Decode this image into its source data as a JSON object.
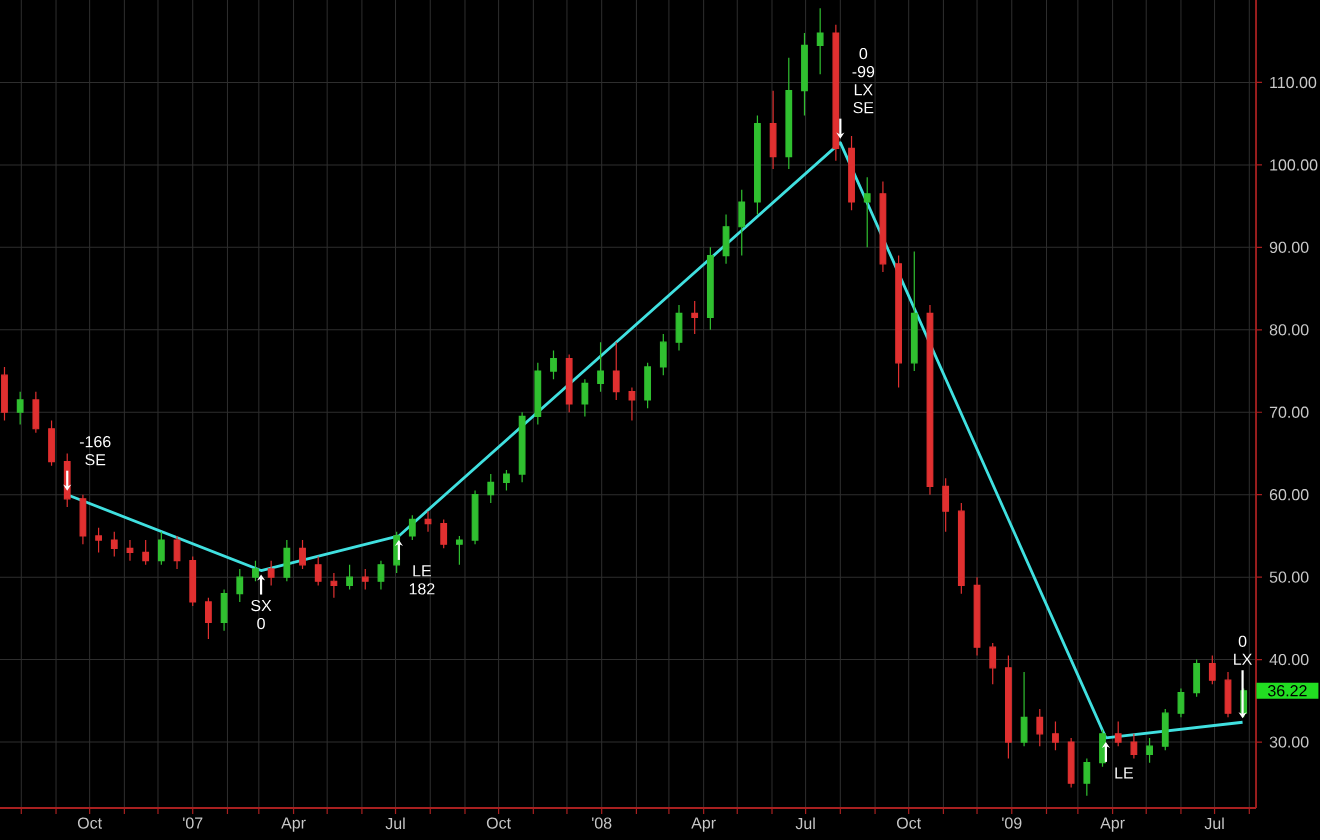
{
  "chart_data": {
    "type": "candlestick",
    "x": [
      "2006-07-17",
      "2006-07-31",
      "2006-08-14",
      "2006-08-28",
      "2006-09-11",
      "2006-09-25",
      "2006-10-09",
      "2006-10-23",
      "2006-11-06",
      "2006-11-20",
      "2006-12-04",
      "2006-12-18",
      "2007-01-01",
      "2007-01-15",
      "2007-01-29",
      "2007-02-12",
      "2007-02-26",
      "2007-03-12",
      "2007-03-26",
      "2007-04-09",
      "2007-04-23",
      "2007-05-07",
      "2007-05-21",
      "2007-06-04",
      "2007-06-18",
      "2007-07-02",
      "2007-07-16",
      "2007-07-30",
      "2007-08-13",
      "2007-08-27",
      "2007-09-10",
      "2007-09-24",
      "2007-10-08",
      "2007-10-22",
      "2007-11-05",
      "2007-11-19",
      "2007-12-03",
      "2007-12-17",
      "2007-12-31",
      "2008-01-14",
      "2008-01-28",
      "2008-02-11",
      "2008-02-25",
      "2008-03-10",
      "2008-03-24",
      "2008-04-07",
      "2008-04-21",
      "2008-05-05",
      "2008-05-19",
      "2008-06-02",
      "2008-06-16",
      "2008-06-30",
      "2008-07-14",
      "2008-07-28",
      "2008-08-11",
      "2008-08-25",
      "2008-09-08",
      "2008-09-22",
      "2008-10-06",
      "2008-10-20",
      "2008-11-03",
      "2008-11-17",
      "2008-12-01",
      "2008-12-15",
      "2008-12-29",
      "2009-01-12",
      "2009-01-26",
      "2009-02-09",
      "2009-02-23",
      "2009-03-09",
      "2009-03-23",
      "2009-04-06",
      "2009-04-20",
      "2009-05-04",
      "2009-05-18",
      "2009-06-01",
      "2009-06-15",
      "2009-06-29",
      "2009-07-13",
      "2009-07-27"
    ],
    "ohlc": [
      [
        74.5,
        75.5,
        69,
        70
      ],
      [
        70,
        72.5,
        68.5,
        71.5
      ],
      [
        71.5,
        72.5,
        67.5,
        68
      ],
      [
        68,
        69,
        63.5,
        64
      ],
      [
        64,
        65,
        58.5,
        59.5
      ],
      [
        59.5,
        60,
        54,
        55
      ],
      [
        55,
        56,
        53,
        54.5
      ],
      [
        54.5,
        55.5,
        52.5,
        53.5
      ],
      [
        53.5,
        54.5,
        52,
        53
      ],
      [
        53,
        54.5,
        51.5,
        52
      ],
      [
        52,
        55.5,
        51.5,
        54.5
      ],
      [
        54.5,
        55,
        51,
        52
      ],
      [
        52,
        52.5,
        46.5,
        47
      ],
      [
        47,
        47.5,
        42.5,
        44.5
      ],
      [
        44.5,
        48.5,
        43.5,
        48
      ],
      [
        48,
        51,
        47,
        50
      ],
      [
        50,
        52,
        49.5,
        51
      ],
      [
        51,
        52,
        49,
        50
      ],
      [
        50,
        54.5,
        49.5,
        53.5
      ],
      [
        53.5,
        54.5,
        51,
        51.5
      ],
      [
        51.5,
        52.5,
        49,
        49.5
      ],
      [
        49.5,
        50.5,
        47.5,
        49
      ],
      [
        49,
        51.5,
        48.5,
        50
      ],
      [
        50,
        51,
        48.5,
        49.5
      ],
      [
        49.5,
        52,
        48.5,
        51.5
      ],
      [
        51.5,
        55.5,
        50.5,
        55
      ],
      [
        55,
        57.5,
        54.5,
        57
      ],
      [
        57,
        58,
        55.5,
        56.5
      ],
      [
        56.5,
        57,
        53.5,
        54
      ],
      [
        54,
        55,
        51.5,
        54.5
      ],
      [
        54.5,
        60.5,
        54,
        60
      ],
      [
        60,
        62.5,
        59,
        61.5
      ],
      [
        61.5,
        63,
        60.5,
        62.5
      ],
      [
        62.5,
        70,
        61.5,
        69.5
      ],
      [
        69.5,
        76,
        68.5,
        75
      ],
      [
        75,
        77.5,
        74,
        76.5
      ],
      [
        76.5,
        77,
        70,
        71
      ],
      [
        71,
        74,
        69.5,
        73.5
      ],
      [
        73.5,
        78.5,
        72.5,
        75
      ],
      [
        75,
        78.5,
        71.5,
        72.5
      ],
      [
        72.5,
        73,
        69,
        71.5
      ],
      [
        71.5,
        76,
        70.5,
        75.5
      ],
      [
        75.5,
        79.5,
        74.5,
        78.5
      ],
      [
        78.5,
        83,
        77.5,
        82
      ],
      [
        82,
        83.5,
        79.5,
        81.5
      ],
      [
        81.5,
        90,
        80,
        89
      ],
      [
        89,
        94,
        88,
        92.5
      ],
      [
        92.5,
        97,
        89,
        95.5
      ],
      [
        95.5,
        106,
        94,
        105
      ],
      [
        105,
        109,
        99.5,
        101
      ],
      [
        101,
        113,
        99.5,
        109
      ],
      [
        109,
        116,
        106,
        114.5
      ],
      [
        114.5,
        119,
        111,
        116
      ],
      [
        116,
        117,
        100.5,
        102
      ],
      [
        102,
        103.5,
        94.5,
        95.5
      ],
      [
        95.5,
        98.5,
        90,
        96.5
      ],
      [
        96.5,
        98,
        87,
        88
      ],
      [
        88,
        89,
        73,
        76
      ],
      [
        76,
        89.5,
        75,
        82
      ],
      [
        82,
        83,
        60,
        61
      ],
      [
        61,
        62,
        55.5,
        58
      ],
      [
        58,
        59,
        48,
        49
      ],
      [
        49,
        50,
        40.5,
        41.5
      ],
      [
        41.5,
        42,
        37,
        39
      ],
      [
        39,
        40.5,
        28,
        30
      ],
      [
        30,
        38.5,
        29.5,
        33
      ],
      [
        33,
        34,
        29.5,
        31
      ],
      [
        31,
        32.5,
        29,
        30
      ],
      [
        30,
        30.5,
        24.5,
        25
      ],
      [
        25,
        28,
        23.5,
        27.5
      ],
      [
        27.5,
        31.5,
        27,
        31
      ],
      [
        31,
        32.5,
        29.5,
        30
      ],
      [
        30,
        31,
        28,
        28.5
      ],
      [
        28.5,
        30.5,
        27.5,
        29.5
      ],
      [
        29.5,
        34,
        29,
        33.5
      ],
      [
        33.5,
        36.5,
        33,
        36
      ],
      [
        36,
        40,
        35.5,
        39.5
      ],
      [
        39.5,
        40.5,
        37,
        37.5
      ],
      [
        37.5,
        38.5,
        33,
        33.5
      ],
      [
        33.5,
        36.5,
        33,
        36.22
      ]
    ],
    "colors": [
      "#e03030",
      "#30c030",
      "#e03030",
      "#e03030",
      "#e03030",
      "#e03030",
      "#e03030",
      "#e03030",
      "#e03030",
      "#e03030",
      "#30c030",
      "#e03030",
      "#e03030",
      "#e03030",
      "#30c030",
      "#30c030",
      "#30c030",
      "#e03030",
      "#30c030",
      "#e03030",
      "#e03030",
      "#e03030",
      "#30c030",
      "#e03030",
      "#30c030",
      "#30c030",
      "#30c030",
      "#e03030",
      "#e03030",
      "#30c030",
      "#30c030",
      "#30c030",
      "#30c030",
      "#30c030",
      "#30c030",
      "#30c030",
      "#e03030",
      "#30c030",
      "#30c030",
      "#e03030",
      "#e03030",
      "#30c030",
      "#30c030",
      "#30c030",
      "#e03030",
      "#30c030",
      "#30c030",
      "#30c030",
      "#30c030",
      "#e03030",
      "#30c030",
      "#30c030",
      "#30c030",
      "#e03030",
      "#e03030",
      "#30c030",
      "#e03030",
      "#e03030",
      "#30c030",
      "#e03030",
      "#e03030",
      "#e03030",
      "#e03030",
      "#e03030",
      "#e03030",
      "#30c030",
      "#e03030",
      "#e03030",
      "#e03030",
      "#30c030",
      "#30c030",
      "#e03030",
      "#e03030",
      "#30c030",
      "#30c030",
      "#30c030",
      "#30c030",
      "#e03030",
      "#e03030",
      "#30c030"
    ],
    "series": [
      {
        "type": "line",
        "color": "#40e0e0",
        "x": [
          "2006-09-11",
          "2007-03-03",
          "2007-07-04",
          "2008-08-01",
          "2009-03-26",
          "2009-07-26"
        ],
        "values": [
          60,
          50.8,
          55,
          102.7,
          30.5,
          32.4
        ]
      }
    ],
    "xlim": [
      "2006-07-13",
      "2009-08-07"
    ],
    "ylim": [
      22,
      120
    ],
    "xticks": [
      {
        "value": "2006-08-01",
        "label": null
      },
      {
        "value": "2006-09-01",
        "label": null
      },
      {
        "value": "2006-10-01",
        "label": "Oct"
      },
      {
        "value": "2006-11-01",
        "label": null
      },
      {
        "value": "2006-12-01",
        "label": null
      },
      {
        "value": "2007-01-01",
        "label": "'07"
      },
      {
        "value": "2007-02-01",
        "label": null
      },
      {
        "value": "2007-03-01",
        "label": null
      },
      {
        "value": "2007-04-01",
        "label": "Apr"
      },
      {
        "value": "2007-05-01",
        "label": null
      },
      {
        "value": "2007-06-01",
        "label": null
      },
      {
        "value": "2007-07-01",
        "label": "Jul"
      },
      {
        "value": "2007-08-01",
        "label": null
      },
      {
        "value": "2007-09-01",
        "label": null
      },
      {
        "value": "2007-10-01",
        "label": "Oct"
      },
      {
        "value": "2007-11-01",
        "label": null
      },
      {
        "value": "2007-12-01",
        "label": null
      },
      {
        "value": "2008-01-01",
        "label": "'08"
      },
      {
        "value": "2008-02-01",
        "label": null
      },
      {
        "value": "2008-03-01",
        "label": null
      },
      {
        "value": "2008-04-01",
        "label": "Apr"
      },
      {
        "value": "2008-05-01",
        "label": null
      },
      {
        "value": "2008-06-01",
        "label": null
      },
      {
        "value": "2008-07-01",
        "label": "Jul"
      },
      {
        "value": "2008-08-01",
        "label": null
      },
      {
        "value": "2008-09-01",
        "label": null
      },
      {
        "value": "2008-10-01",
        "label": "Oct"
      },
      {
        "value": "2008-11-01",
        "label": null
      },
      {
        "value": "2008-12-01",
        "label": null
      },
      {
        "value": "2009-01-01",
        "label": "'09"
      },
      {
        "value": "2009-02-01",
        "label": null
      },
      {
        "value": "2009-03-01",
        "label": null
      },
      {
        "value": "2009-04-01",
        "label": "Apr"
      },
      {
        "value": "2009-05-01",
        "label": null
      },
      {
        "value": "2009-06-01",
        "label": null
      },
      {
        "value": "2009-07-01",
        "label": "Jul"
      },
      {
        "value": "2009-08-01",
        "label": null
      }
    ],
    "yticks": [
      {
        "value": 30,
        "label": "30.00"
      },
      {
        "value": 40,
        "label": "40.00"
      },
      {
        "value": 50,
        "label": "50.00"
      },
      {
        "value": 60,
        "label": "60.00"
      },
      {
        "value": 70,
        "label": "70.00"
      },
      {
        "value": 80,
        "label": "80.00"
      },
      {
        "value": 90,
        "label": "90.00"
      },
      {
        "value": 100,
        "label": "100.00"
      },
      {
        "value": 110,
        "label": "110.00"
      }
    ],
    "grid": true,
    "annotations": [
      {
        "text": "-166 SE",
        "x": "2006-09-11",
        "y": 60
      },
      {
        "text": "SX 0",
        "x": "2007-03-03",
        "y": 50.8
      },
      {
        "text": "LE 182",
        "x": "2007-07-04",
        "y": 55
      },
      {
        "text": "0 -99 LX SE",
        "x": "2008-08-01",
        "y": 102.7
      },
      {
        "text": "LE",
        "x": "2009-03-26",
        "y": 30.5
      },
      {
        "text": "0 LX",
        "x": "2009-07-26",
        "y": 32.4
      },
      {
        "text": "36.22",
        "x": "2009-07-27",
        "y": 36.22
      }
    ]
  }
}
